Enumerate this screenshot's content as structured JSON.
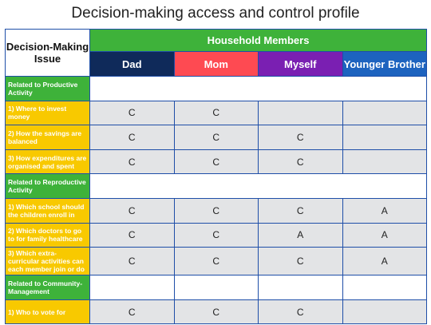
{
  "title": "Decision-making access and control profile",
  "header": {
    "issue_label": "Decision-Making Issue",
    "members_label": "Household Members",
    "members": [
      {
        "label": "Dad",
        "color": "#0f2a5a"
      },
      {
        "label": "Mom",
        "color": "#fe4a52"
      },
      {
        "label": "Myself",
        "color": "#7a1fb2"
      },
      {
        "label": "Younger Brother",
        "color": "#1d63bf"
      }
    ]
  },
  "colors": {
    "section_green": "#3eb23a",
    "item_yellow": "#f8c900",
    "cell_gray": "#e3e4e6",
    "border_blue": "#1e4ea8"
  },
  "rows": [
    {
      "type": "section",
      "label": "Related to Productive Activity"
    },
    {
      "type": "item",
      "label": "1) Where to invest money",
      "values": [
        "C",
        "C",
        "",
        ""
      ]
    },
    {
      "type": "item",
      "label": "2) How the savings are balanced",
      "values": [
        "C",
        "C",
        "C",
        ""
      ]
    },
    {
      "type": "item",
      "label": "3) How expenditures are organised and spent",
      "values": [
        "C",
        "C",
        "C",
        ""
      ]
    },
    {
      "type": "section",
      "label": "Related to Reproductive Activity"
    },
    {
      "type": "item",
      "label": "1) Which school should the children enroll in",
      "values": [
        "C",
        "C",
        "C",
        "A"
      ]
    },
    {
      "type": "item",
      "label": "2) Which doctors to go to for family healthcare",
      "values": [
        "C",
        "C",
        "A",
        "A"
      ]
    },
    {
      "type": "item",
      "label": "3) Which extra-curricular activities can each member join or do",
      "values": [
        "C",
        "C",
        "C",
        "A"
      ]
    },
    {
      "type": "section4",
      "label": "Related to Community-Management"
    },
    {
      "type": "item",
      "label": "1) Who to vote for",
      "values": [
        "C",
        "C",
        "C",
        ""
      ]
    }
  ]
}
